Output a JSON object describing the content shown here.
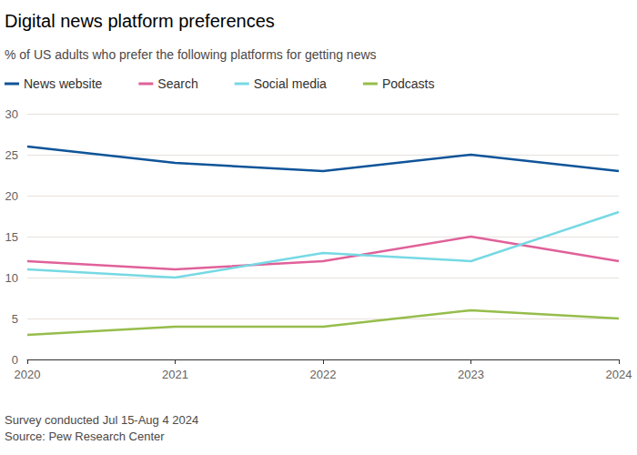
{
  "chart_data": {
    "type": "line",
    "title": "Digital news platform preferences",
    "subtitle": "% of US adults who prefer the following platforms for getting news",
    "notes": [
      "Survey conducted Jul 15-Aug 4 2024",
      "Source: Pew Research Center"
    ],
    "categories": [
      "2020",
      "2021",
      "2022",
      "2023",
      "2024"
    ],
    "series": [
      {
        "name": "News website",
        "color": "#0f5499",
        "values": [
          26,
          24,
          23,
          25,
          23
        ]
      },
      {
        "name": "Search",
        "color": "#e0619a",
        "values": [
          12,
          11,
          12,
          15,
          12
        ]
      },
      {
        "name": "Social media",
        "color": "#76d9e4",
        "values": [
          11,
          10,
          13,
          12,
          18
        ]
      },
      {
        "name": "Podcasts",
        "color": "#96bd4b",
        "values": [
          3,
          4,
          4,
          6,
          5
        ]
      }
    ],
    "ylim": [
      0,
      30
    ],
    "yticks": [
      0,
      5,
      10,
      15,
      20,
      25,
      30
    ],
    "grid": true,
    "legend": "top-left"
  }
}
